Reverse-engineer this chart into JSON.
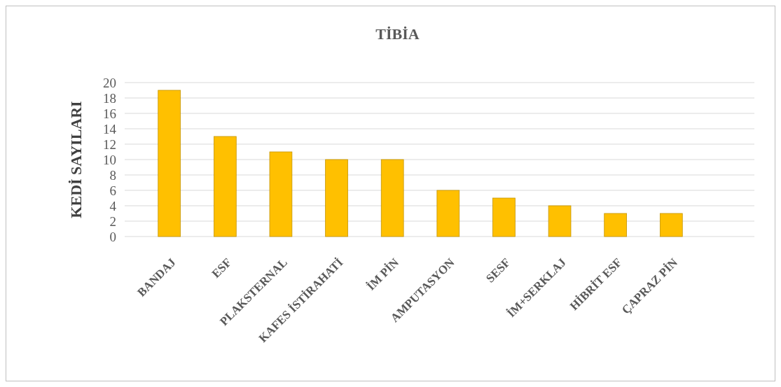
{
  "chart_data": {
    "type": "bar",
    "title": "TİBİA",
    "ylabel": "KEDİ SAYILARI",
    "categories": [
      "BANDAJ",
      "ESF",
      "PLAKSTERNAL",
      "KAFES İSTİRAHATİ",
      "İM PİN",
      "AMPUTASYON",
      "SESF",
      "İM+SERKLAJ",
      "HİBRİT ESF",
      "ÇAPRAZ PİN"
    ],
    "values": [
      19,
      13,
      11,
      10,
      10,
      6,
      5,
      4,
      3,
      3
    ],
    "color": "#ffc000",
    "ylim": [
      0,
      20
    ],
    "yticks": [
      0,
      2,
      4,
      6,
      8,
      10,
      12,
      14,
      16,
      18,
      20
    ],
    "grid": "y"
  }
}
